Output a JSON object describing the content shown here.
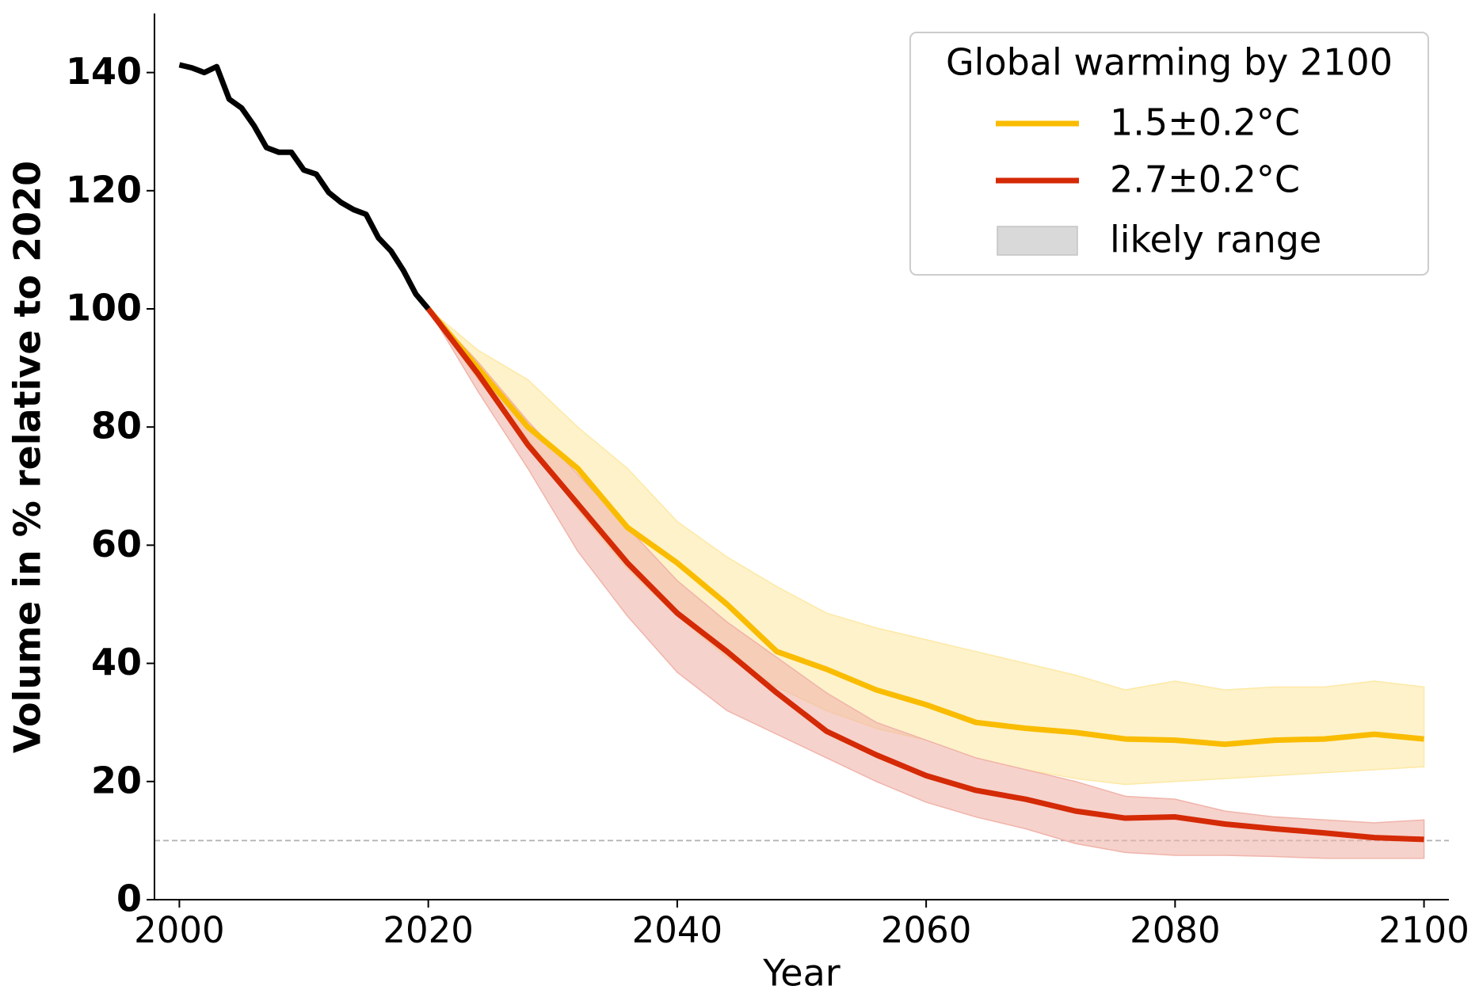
{
  "chart_data": {
    "type": "line",
    "x_label": "Year",
    "y_label": "Volume in % relative to 2020",
    "xlim": [
      1998,
      2102
    ],
    "ylim": [
      0,
      150
    ],
    "xticks": [
      2000,
      2020,
      2040,
      2060,
      2080,
      2100
    ],
    "yticks": [
      0,
      20,
      40,
      60,
      80,
      100,
      120,
      140
    ],
    "reference_line": 10,
    "legend_title": "Global warming by 2100",
    "legend_position": "upper right",
    "band_label": "likely range",
    "band_legend_color": "#d9d9d9",
    "historical": {
      "color": "#000000",
      "x": [
        2000,
        2001,
        2002,
        2003,
        2004,
        2005,
        2006,
        2007,
        2008,
        2009,
        2010,
        2011,
        2012,
        2013,
        2014,
        2015,
        2016,
        2017,
        2018,
        2019,
        2020
      ],
      "values": [
        141.3,
        140.8,
        140,
        141,
        135.5,
        134,
        131,
        127.3,
        126.5,
        126.5,
        123.5,
        122.8,
        119.7,
        118,
        116.8,
        116,
        112,
        109.8,
        106.5,
        102.5,
        100
      ]
    },
    "series": [
      {
        "name": "1.5±0.2°C",
        "color": "#f9bc00",
        "band_color": "#fde9a6",
        "x": [
          2020,
          2024,
          2028,
          2032,
          2036,
          2040,
          2044,
          2048,
          2052,
          2056,
          2060,
          2064,
          2068,
          2072,
          2076,
          2080,
          2084,
          2088,
          2092,
          2096,
          2100
        ],
        "values": [
          100,
          90,
          80,
          73,
          63,
          57,
          50,
          42,
          39,
          35.5,
          33,
          30,
          29,
          28.3,
          27.2,
          27,
          26.3,
          27,
          27.2,
          28,
          27.2
        ],
        "lower": [
          100,
          88,
          78,
          66,
          56,
          48,
          41,
          36,
          32,
          29,
          27,
          24,
          22,
          20.5,
          19.5,
          20,
          20.5,
          21,
          21.5,
          22,
          22.5
        ],
        "upper": [
          100,
          93,
          88,
          80,
          73,
          64,
          58,
          53,
          48.5,
          46,
          44,
          42,
          40,
          38,
          35.5,
          37,
          35.5,
          36,
          36,
          37,
          36
        ]
      },
      {
        "name": "2.7±0.2°C",
        "color": "#d42a06",
        "band_color": "#f0b4aa",
        "x": [
          2020,
          2024,
          2028,
          2032,
          2036,
          2040,
          2044,
          2048,
          2052,
          2056,
          2060,
          2064,
          2068,
          2072,
          2076,
          2080,
          2084,
          2088,
          2092,
          2096,
          2100
        ],
        "values": [
          100,
          89,
          77,
          67,
          57,
          48.5,
          42,
          35,
          28.5,
          24.5,
          21,
          18.5,
          17,
          15,
          13.8,
          14,
          12.8,
          12,
          11.3,
          10.5,
          10.2
        ],
        "lower": [
          100,
          86,
          73,
          59,
          48,
          38.5,
          32,
          28,
          24,
          20,
          16.5,
          14,
          12,
          9.5,
          8,
          7.5,
          7.5,
          7.3,
          7,
          7,
          7
        ],
        "upper": [
          100,
          91,
          81,
          72,
          63,
          54,
          47,
          41,
          35,
          30,
          27,
          24,
          22,
          20,
          17.5,
          17,
          15,
          14,
          13.5,
          13,
          13.5
        ]
      }
    ]
  }
}
